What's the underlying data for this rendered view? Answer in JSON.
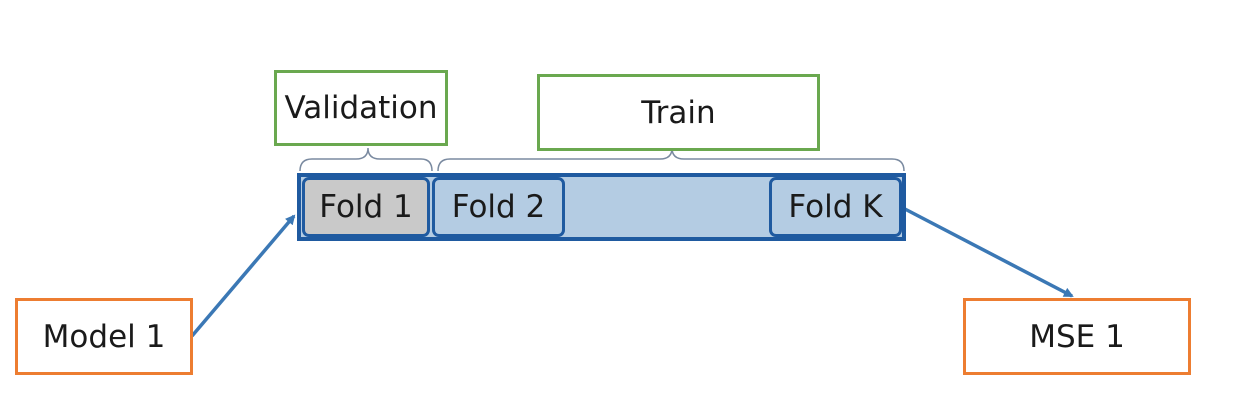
{
  "labels": {
    "validation": "Validation",
    "train": "Train",
    "fold_1": "Fold 1",
    "fold_2": "Fold 2",
    "fold_k": "Fold K",
    "model": "Model 1",
    "mse": "MSE 1"
  },
  "colors": {
    "green_border": "#6aa84f",
    "orange_border": "#ed7d31",
    "fold_bar_fill": "#b4cce3",
    "fold_bar_border": "#1f5aa0",
    "validation_fold_fill": "#c9c9c9",
    "arrow": "#3b78b5",
    "brace": "#7a8aa0"
  }
}
